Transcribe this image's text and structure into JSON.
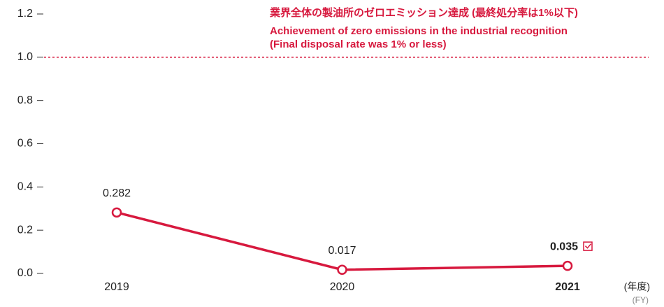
{
  "chart_data": {
    "type": "line",
    "categories": [
      "2019",
      "2020",
      "2021"
    ],
    "series": [
      {
        "name": null,
        "color": "#d7193e",
        "values": [
          0.282,
          0.017,
          0.035
        ]
      }
    ],
    "ylim": [
      0,
      1.2
    ],
    "yticks": [
      {
        "value": 0,
        "label": "0.0"
      },
      0.2,
      0.4,
      0.6,
      0.8,
      {
        "value": 1,
        "label": "1.0"
      },
      1.2
    ],
    "reference_line": {
      "value": 1,
      "color": "#d7193e",
      "annotation": [
        "業界全体の製油所のゼロエミッション達成 (最終処分率は1%以下)",
        "Achievement of zero emissions in the industrial recognition",
        "(Final disposal rate was 1% or less)"
      ]
    },
    "xlabel": [
      "(年度)",
      "(FY)"
    ]
  }
}
